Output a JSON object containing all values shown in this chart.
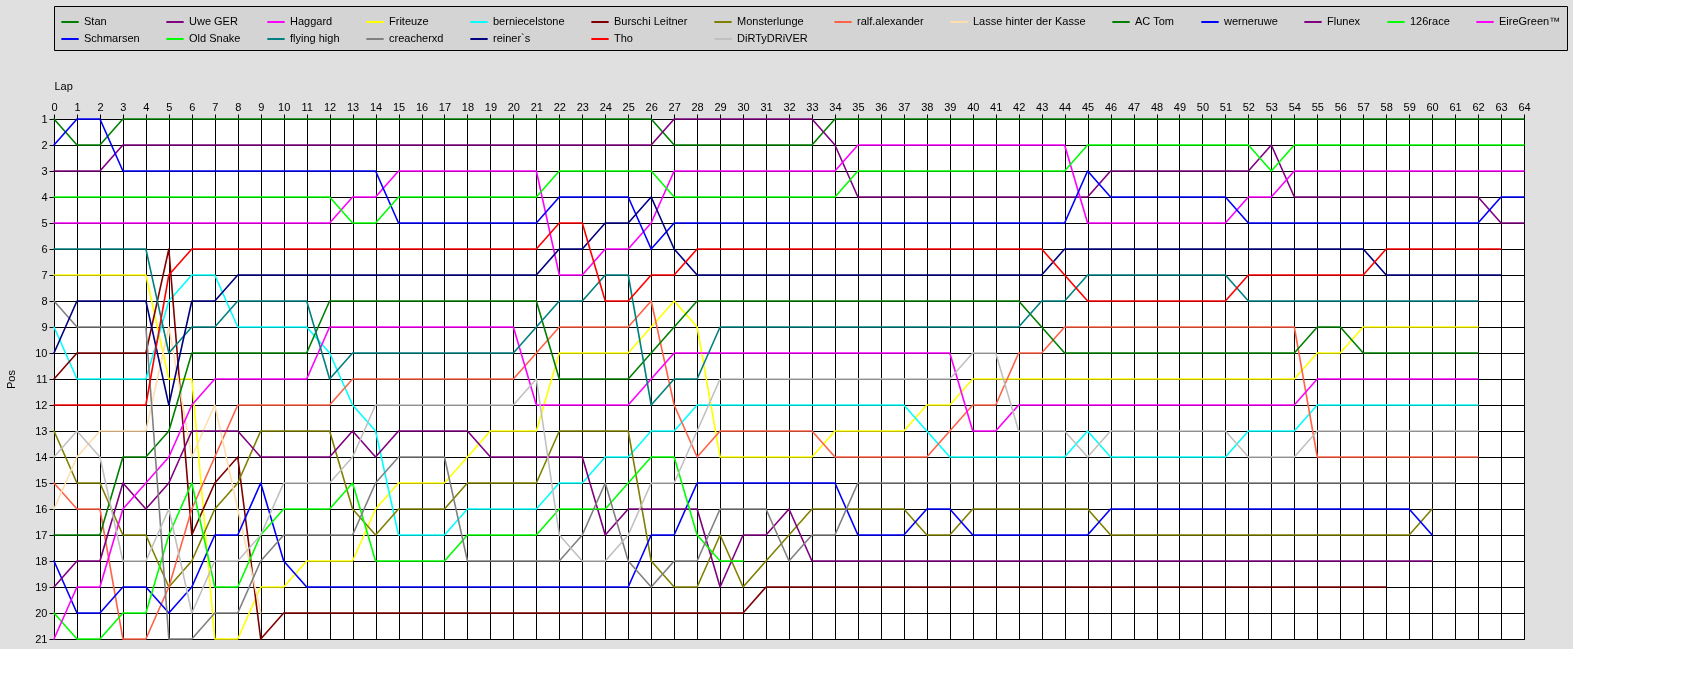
{
  "chart_data": {
    "type": "line",
    "xlabel": "Lap",
    "ylabel": "Pos",
    "x": [
      0,
      1,
      2,
      3,
      4,
      5,
      6,
      7,
      8,
      9,
      10,
      11,
      12,
      13,
      14,
      15,
      16,
      17,
      18,
      19,
      20,
      21,
      22,
      23,
      24,
      25,
      26,
      27,
      28,
      29,
      30,
      31,
      32,
      33,
      34,
      35,
      36,
      37,
      38,
      39,
      40,
      41,
      42,
      43,
      44,
      45,
      46,
      47,
      48,
      49,
      50,
      51,
      52,
      53,
      54,
      55,
      56,
      57,
      58,
      59,
      60,
      61,
      62,
      63,
      64
    ],
    "xlim": [
      0,
      64
    ],
    "xticks": [
      0,
      1,
      2,
      3,
      4,
      5,
      6,
      7,
      8,
      9,
      10,
      11,
      12,
      13,
      14,
      15,
      16,
      17,
      18,
      19,
      20,
      21,
      22,
      23,
      24,
      25,
      26,
      27,
      28,
      29,
      30,
      31,
      32,
      33,
      34,
      35,
      36,
      37,
      38,
      39,
      40,
      41,
      42,
      43,
      44,
      45,
      46,
      47,
      48,
      49,
      50,
      51,
      52,
      53,
      54,
      55,
      56,
      57,
      58,
      59,
      60,
      61,
      62,
      63,
      64
    ],
    "ylim": [
      21,
      1
    ],
    "yticks": [
      1,
      2,
      3,
      4,
      5,
      6,
      7,
      8,
      9,
      10,
      11,
      12,
      13,
      14,
      15,
      16,
      17,
      18,
      19,
      20,
      21
    ],
    "grid": true,
    "legend": "top",
    "marker": "none",
    "line_style": "solid",
    "series": [
      {
        "name": "Stan",
        "color": "#008000",
        "values": [
          1,
          2,
          2,
          1,
          1,
          1,
          1,
          1,
          1,
          1,
          1,
          1,
          1,
          1,
          1,
          1,
          1,
          1,
          1,
          1,
          1,
          1,
          1,
          1,
          1,
          1,
          1,
          2,
          2,
          2,
          2,
          2,
          2,
          2,
          1,
          1,
          1,
          1,
          1,
          1,
          1,
          1,
          1,
          1,
          1,
          1,
          1,
          1,
          1,
          1,
          1,
          1,
          1,
          1,
          1,
          1,
          1,
          1,
          1,
          1,
          1,
          1,
          1,
          1,
          1
        ]
      },
      {
        "name": "Uwe GER",
        "color": "#800080",
        "values": [
          3,
          3,
          3,
          2,
          2,
          2,
          2,
          2,
          2,
          2,
          2,
          2,
          2,
          2,
          2,
          2,
          2,
          2,
          2,
          2,
          2,
          2,
          2,
          2,
          2,
          2,
          2,
          1,
          1,
          1,
          1,
          1,
          1,
          1,
          2,
          4,
          4,
          4,
          4,
          4,
          4,
          4,
          4,
          4,
          4,
          4,
          3,
          3,
          3,
          3,
          3,
          3,
          3,
          2,
          4,
          4,
          4,
          4,
          4,
          4,
          4,
          4,
          4,
          5,
          5
        ]
      },
      {
        "name": "Haggard",
        "color": "#ff00ff",
        "values": [
          5,
          5,
          5,
          5,
          5,
          5,
          5,
          5,
          5,
          5,
          5,
          5,
          5,
          4,
          4,
          3,
          3,
          3,
          3,
          3,
          3,
          3,
          7,
          7,
          6,
          6,
          5,
          3,
          3,
          3,
          3,
          3,
          3,
          3,
          3,
          2,
          2,
          2,
          2,
          2,
          2,
          2,
          2,
          2,
          2,
          5,
          5,
          5,
          5,
          5,
          5,
          5,
          4,
          4,
          3,
          3,
          3,
          3,
          3,
          3,
          3,
          3,
          3,
          3,
          3
        ]
      },
      {
        "name": "Friteuze",
        "color": "#ffff00",
        "values": [
          7,
          7,
          7,
          7,
          7,
          11,
          11,
          21,
          21,
          19,
          19,
          18,
          18,
          18,
          16,
          15,
          15,
          15,
          14,
          13,
          13,
          13,
          10,
          10,
          10,
          10,
          9,
          8,
          9,
          14,
          14,
          14,
          14,
          14,
          13,
          13,
          13,
          13,
          12,
          12,
          11,
          11,
          11,
          11,
          11,
          11,
          11,
          11,
          11,
          11,
          11,
          11,
          11,
          11,
          11,
          10,
          10,
          9,
          9,
          9,
          9,
          9,
          9,
          null,
          null
        ]
      },
      {
        "name": "berniecelstone",
        "color": "#00ffff",
        "values": [
          9,
          11,
          11,
          11,
          11,
          8,
          7,
          7,
          9,
          9,
          9,
          9,
          10,
          12,
          13,
          17,
          17,
          17,
          16,
          16,
          16,
          16,
          15,
          15,
          14,
          14,
          13,
          13,
          12,
          12,
          12,
          12,
          12,
          12,
          12,
          12,
          12,
          12,
          13,
          14,
          14,
          14,
          14,
          14,
          14,
          13,
          14,
          14,
          14,
          14,
          14,
          14,
          13,
          13,
          13,
          12,
          12,
          12,
          12,
          12,
          12,
          12,
          12,
          null,
          null
        ]
      },
      {
        "name": "Burschi Leitner",
        "color": "#800000",
        "values": [
          11,
          10,
          10,
          10,
          10,
          6,
          17,
          15,
          14,
          21,
          20,
          20,
          20,
          20,
          20,
          20,
          20,
          20,
          20,
          20,
          20,
          20,
          20,
          20,
          20,
          20,
          20,
          20,
          20,
          20,
          20,
          19,
          19,
          19,
          19,
          19,
          19,
          19,
          19,
          19,
          19,
          19,
          19,
          19,
          19,
          19,
          19,
          19,
          19,
          19,
          19,
          19,
          19,
          19,
          19,
          19,
          19,
          19,
          19,
          null,
          null,
          null,
          null,
          null,
          null
        ]
      },
      {
        "name": "Monsterlunge",
        "color": "#808000",
        "values": [
          13,
          15,
          15,
          17,
          17,
          19,
          18,
          16,
          15,
          13,
          13,
          13,
          13,
          16,
          17,
          16,
          16,
          16,
          15,
          15,
          15,
          15,
          13,
          13,
          13,
          13,
          18,
          19,
          19,
          17,
          19,
          18,
          17,
          16,
          16,
          16,
          16,
          16,
          17,
          17,
          16,
          16,
          16,
          16,
          16,
          16,
          17,
          17,
          17,
          17,
          17,
          17,
          17,
          17,
          17,
          17,
          17,
          17,
          17,
          17,
          16,
          null,
          null,
          null,
          null
        ]
      },
      {
        "name": "ralf.alexander",
        "color": "#ff6347",
        "values": [
          15,
          16,
          16,
          21,
          21,
          19,
          16,
          14,
          12,
          12,
          12,
          12,
          12,
          11,
          11,
          11,
          11,
          11,
          11,
          11,
          11,
          10,
          9,
          9,
          9,
          9,
          8,
          12,
          14,
          13,
          13,
          13,
          13,
          13,
          14,
          14,
          14,
          14,
          14,
          13,
          12,
          12,
          10,
          10,
          9,
          9,
          9,
          9,
          9,
          9,
          9,
          9,
          9,
          9,
          9,
          14,
          14,
          14,
          14,
          14,
          14,
          14,
          14,
          null,
          null
        ]
      },
      {
        "name": "Lasse hinter der Kasse",
        "color": "#ffdead",
        "values": [
          16,
          14,
          13,
          13,
          13,
          9,
          14,
          12,
          16,
          20,
          null,
          null,
          null,
          null,
          null,
          null,
          null,
          null,
          null,
          null,
          null,
          null,
          null,
          null,
          null,
          null,
          null,
          null,
          null,
          null,
          null,
          null,
          null,
          null,
          null,
          null,
          null,
          null,
          null,
          null,
          null,
          null,
          null,
          null,
          null,
          null,
          null,
          null,
          null,
          null,
          null,
          null,
          null,
          null,
          null,
          null,
          null,
          null,
          null,
          null,
          null,
          null,
          null,
          null,
          null
        ]
      },
      {
        "name": "AC Tom",
        "color": "#008000",
        "values": [
          17,
          17,
          17,
          14,
          14,
          13,
          10,
          10,
          10,
          10,
          10,
          10,
          8,
          8,
          8,
          8,
          8,
          8,
          8,
          8,
          8,
          8,
          11,
          11,
          11,
          11,
          10,
          9,
          8,
          8,
          8,
          8,
          8,
          8,
          8,
          8,
          8,
          8,
          8,
          8,
          8,
          8,
          8,
          9,
          10,
          10,
          10,
          10,
          10,
          10,
          10,
          10,
          10,
          10,
          10,
          9,
          9,
          10,
          10,
          10,
          10,
          10,
          10,
          null,
          null
        ]
      },
      {
        "name": "werneruwe",
        "color": "#0000ff",
        "values": [
          18,
          20,
          20,
          19,
          19,
          20,
          19,
          17,
          17,
          15,
          18,
          19,
          19,
          19,
          19,
          19,
          19,
          19,
          19,
          19,
          19,
          19,
          19,
          19,
          19,
          19,
          17,
          17,
          15,
          15,
          15,
          15,
          15,
          15,
          15,
          17,
          17,
          17,
          16,
          16,
          17,
          17,
          17,
          17,
          17,
          17,
          16,
          16,
          16,
          16,
          16,
          16,
          16,
          16,
          16,
          16,
          16,
          16,
          16,
          16,
          17,
          null,
          null,
          null,
          null
        ]
      },
      {
        "name": "Flunex",
        "color": "#800080",
        "values": [
          19,
          18,
          18,
          15,
          16,
          15,
          13,
          13,
          13,
          14,
          14,
          14,
          14,
          13,
          14,
          13,
          13,
          13,
          13,
          14,
          14,
          14,
          14,
          14,
          17,
          16,
          16,
          16,
          16,
          19,
          17,
          17,
          16,
          18,
          18,
          18,
          18,
          18,
          18,
          18,
          18,
          18,
          18,
          18,
          18,
          18,
          18,
          18,
          18,
          18,
          18,
          18,
          18,
          18,
          18,
          18,
          18,
          18,
          18,
          18,
          18,
          null,
          null,
          null,
          null
        ]
      },
      {
        "name": "126race",
        "color": "#00ff00",
        "values": [
          20,
          21,
          21,
          20,
          20,
          17,
          15,
          19,
          19,
          17,
          16,
          16,
          16,
          15,
          18,
          18,
          18,
          18,
          17,
          17,
          17,
          17,
          16,
          16,
          16,
          15,
          14,
          14,
          17,
          18,
          18,
          null,
          null,
          null,
          null,
          null,
          null,
          null,
          null,
          null,
          null,
          null,
          null,
          null,
          null,
          null,
          null,
          null,
          null,
          null,
          null,
          null,
          null,
          null,
          null,
          null,
          null,
          null,
          null,
          null,
          null,
          null,
          null,
          null,
          null
        ]
      },
      {
        "name": "EireGreen™",
        "color": "#ff00ff",
        "values": [
          21,
          19,
          19,
          16,
          15,
          14,
          12,
          11,
          11,
          11,
          11,
          11,
          9,
          9,
          9,
          9,
          9,
          9,
          9,
          9,
          9,
          12,
          12,
          12,
          12,
          12,
          11,
          10,
          10,
          10,
          10,
          10,
          10,
          10,
          10,
          10,
          10,
          10,
          10,
          10,
          13,
          13,
          12,
          12,
          12,
          12,
          12,
          12,
          12,
          12,
          12,
          12,
          12,
          12,
          12,
          11,
          11,
          11,
          11,
          11,
          11,
          11,
          11,
          null,
          null
        ]
      },
      {
        "name": "Schmarsen",
        "color": "#0000ff",
        "values": [
          2,
          1,
          1,
          3,
          3,
          3,
          3,
          3,
          3,
          3,
          3,
          3,
          3,
          3,
          3,
          5,
          5,
          5,
          5,
          5,
          5,
          5,
          4,
          4,
          4,
          4,
          6,
          5,
          5,
          5,
          5,
          5,
          5,
          5,
          5,
          5,
          5,
          5,
          5,
          5,
          5,
          5,
          5,
          5,
          5,
          3,
          4,
          4,
          4,
          4,
          4,
          4,
          5,
          5,
          5,
          5,
          5,
          5,
          5,
          5,
          5,
          5,
          5,
          4,
          4
        ]
      },
      {
        "name": "Old Snake",
        "color": "#00ff00",
        "values": [
          4,
          4,
          4,
          4,
          4,
          4,
          4,
          4,
          4,
          4,
          4,
          4,
          4,
          5,
          5,
          4,
          4,
          4,
          4,
          4,
          4,
          4,
          3,
          3,
          3,
          3,
          3,
          4,
          4,
          4,
          4,
          4,
          4,
          4,
          4,
          3,
          3,
          3,
          3,
          3,
          3,
          3,
          3,
          3,
          3,
          2,
          2,
          2,
          2,
          2,
          2,
          2,
          2,
          3,
          2,
          2,
          2,
          2,
          2,
          2,
          2,
          2,
          2,
          2,
          2
        ]
      },
      {
        "name": "flying high",
        "color": "#008080",
        "values": [
          6,
          6,
          6,
          6,
          6,
          10,
          9,
          9,
          8,
          8,
          8,
          8,
          11,
          10,
          10,
          10,
          10,
          10,
          10,
          10,
          10,
          9,
          8,
          8,
          7,
          7,
          12,
          11,
          11,
          9,
          9,
          9,
          9,
          9,
          9,
          9,
          9,
          9,
          9,
          9,
          9,
          9,
          9,
          8,
          8,
          7,
          7,
          7,
          7,
          7,
          7,
          7,
          8,
          8,
          8,
          8,
          8,
          8,
          8,
          8,
          8,
          8,
          8,
          null,
          null
        ]
      },
      {
        "name": "creacherxd",
        "color": "#808080",
        "values": [
          8,
          9,
          9,
          9,
          9,
          21,
          21,
          20,
          20,
          18,
          17,
          17,
          17,
          17,
          15,
          14,
          14,
          14,
          18,
          18,
          18,
          18,
          18,
          17,
          15,
          18,
          19,
          18,
          18,
          16,
          16,
          16,
          18,
          17,
          17,
          15,
          15,
          15,
          15,
          15,
          15,
          15,
          15,
          15,
          15,
          15,
          15,
          15,
          15,
          15,
          15,
          15,
          15,
          15,
          15,
          15,
          15,
          15,
          15,
          15,
          15,
          15,
          null,
          null,
          null
        ]
      },
      {
        "name": "reiner`s",
        "color": "#000080",
        "values": [
          10,
          8,
          8,
          8,
          8,
          12,
          8,
          8,
          7,
          7,
          7,
          7,
          7,
          7,
          7,
          7,
          7,
          7,
          7,
          7,
          7,
          7,
          6,
          6,
          5,
          5,
          4,
          6,
          7,
          7,
          7,
          7,
          7,
          7,
          7,
          7,
          7,
          7,
          7,
          7,
          7,
          7,
          7,
          7,
          6,
          6,
          6,
          6,
          6,
          6,
          6,
          6,
          6,
          6,
          6,
          6,
          6,
          6,
          7,
          7,
          7,
          7,
          7,
          7,
          null
        ]
      },
      {
        "name": "Tho",
        "color": "#ff0000",
        "values": [
          12,
          12,
          12,
          12,
          12,
          7,
          6,
          6,
          6,
          6,
          6,
          6,
          6,
          6,
          6,
          6,
          6,
          6,
          6,
          6,
          6,
          6,
          5,
          5,
          8,
          8,
          7,
          7,
          6,
          6,
          6,
          6,
          6,
          6,
          6,
          6,
          6,
          6,
          6,
          6,
          6,
          6,
          6,
          6,
          7,
          8,
          8,
          8,
          8,
          8,
          8,
          8,
          7,
          7,
          7,
          7,
          7,
          7,
          6,
          6,
          6,
          6,
          6,
          6,
          null
        ]
      },
      {
        "name": "DiRTyDRiVER",
        "color": "#c0c0c0",
        "values": [
          14,
          13,
          14,
          18,
          18,
          16,
          20,
          18,
          18,
          17,
          15,
          15,
          15,
          14,
          12,
          12,
          12,
          12,
          12,
          12,
          12,
          11,
          17,
          18,
          18,
          17,
          15,
          15,
          13,
          11,
          11,
          11,
          11,
          11,
          11,
          11,
          11,
          11,
          11,
          11,
          10,
          10,
          13,
          13,
          13,
          14,
          13,
          13,
          13,
          13,
          13,
          13,
          14,
          14,
          14,
          13,
          13,
          13,
          13,
          13,
          13,
          13,
          13,
          null,
          null
        ]
      }
    ]
  }
}
